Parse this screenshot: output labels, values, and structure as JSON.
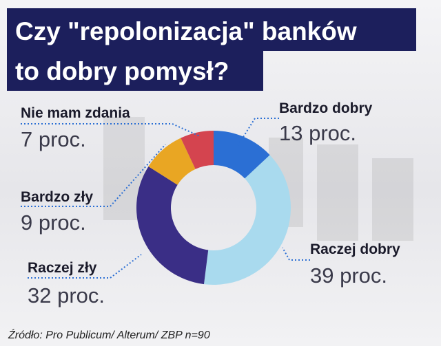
{
  "chart_data": {
    "type": "donut",
    "title_lines": [
      "Czy \"repolonizacja\" banków",
      "to dobry pomysł?"
    ],
    "categories": [
      "Bardzo dobry",
      "Raczej dobry",
      "Raczej zły",
      "Bardzo zły",
      "Nie mam zdania"
    ],
    "values": [
      13,
      39,
      32,
      9,
      7
    ],
    "value_labels": [
      "13 proc.",
      "39 proc.",
      "32 proc.",
      "9 proc.",
      "7 proc."
    ],
    "colors": [
      "#2b6fd4",
      "#a9daee",
      "#3a2e86",
      "#e9a623",
      "#d4444f"
    ],
    "source": "Źródło: Pro Publicum/ Alterum/ ZBP n=90"
  }
}
